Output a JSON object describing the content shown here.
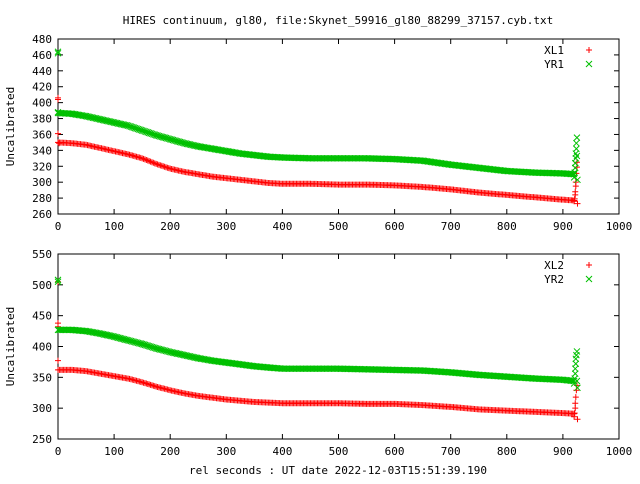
{
  "title": "HIRES continuum, gl80, file:Skynet_59916_gl80_88299_37157.cyb.txt",
  "xlabel": "rel seconds : UT date 2022-12-03T15:51:39.190",
  "colors": {
    "red": "#ff0000",
    "green": "#00c000",
    "axis": "#000000"
  },
  "chart_data": [
    {
      "type": "scatter",
      "ylabel": "Uncalibrated",
      "xlim": [
        0,
        1000
      ],
      "ylim": [
        260,
        480
      ],
      "x_ticks": [
        0,
        100,
        200,
        300,
        400,
        500,
        600,
        700,
        800,
        900,
        1000
      ],
      "y_ticks": [
        260,
        280,
        300,
        320,
        340,
        360,
        380,
        400,
        420,
        440,
        460,
        480
      ],
      "series": [
        {
          "name": "XL1",
          "color": "#ff0000",
          "marker": "+",
          "points": [
            [
              0,
              350
            ],
            [
              25,
              349
            ],
            [
              50,
              347
            ],
            [
              75,
              343
            ],
            [
              100,
              339
            ],
            [
              125,
              335
            ],
            [
              150,
              330
            ],
            [
              175,
              323
            ],
            [
              200,
              317
            ],
            [
              225,
              313
            ],
            [
              250,
              310
            ],
            [
              275,
              307
            ],
            [
              300,
              305
            ],
            [
              325,
              303
            ],
            [
              350,
              301
            ],
            [
              375,
              299
            ],
            [
              400,
              298
            ],
            [
              450,
              298
            ],
            [
              500,
              297
            ],
            [
              550,
              297
            ],
            [
              600,
              296
            ],
            [
              650,
              294
            ],
            [
              700,
              291
            ],
            [
              750,
              287
            ],
            [
              800,
              284
            ],
            [
              850,
              281
            ],
            [
              900,
              278
            ],
            [
              920,
              277
            ]
          ],
          "outliers": [
            [
              0,
              404
            ],
            [
              0,
              406
            ],
            [
              0,
              361
            ],
            [
              2,
              349
            ],
            [
              920,
              276
            ],
            [
              921,
              279
            ],
            [
              922,
              284
            ],
            [
              922,
              288
            ],
            [
              923,
              295
            ],
            [
              923,
              300
            ],
            [
              924,
              311
            ],
            [
              925,
              319
            ],
            [
              925,
              325
            ],
            [
              926,
              273
            ]
          ]
        },
        {
          "name": "YR1",
          "color": "#00c000",
          "marker": "x",
          "points": [
            [
              0,
              387
            ],
            [
              25,
              386
            ],
            [
              50,
              383
            ],
            [
              75,
              379
            ],
            [
              100,
              375
            ],
            [
              125,
              371
            ],
            [
              150,
              365
            ],
            [
              175,
              359
            ],
            [
              200,
              354
            ],
            [
              225,
              349
            ],
            [
              250,
              345
            ],
            [
              275,
              342
            ],
            [
              300,
              339
            ],
            [
              325,
              336
            ],
            [
              350,
              334
            ],
            [
              375,
              332
            ],
            [
              400,
              331
            ],
            [
              450,
              330
            ],
            [
              500,
              330
            ],
            [
              550,
              330
            ],
            [
              600,
              329
            ],
            [
              650,
              327
            ],
            [
              700,
              322
            ],
            [
              750,
              318
            ],
            [
              800,
              314
            ],
            [
              850,
              312
            ],
            [
              900,
              311
            ],
            [
              920,
              310
            ]
          ],
          "outliers": [
            [
              0,
              464
            ],
            [
              0,
              462
            ],
            [
              0,
              388
            ],
            [
              920,
              306
            ],
            [
              921,
              312
            ],
            [
              922,
              318
            ],
            [
              922,
              324
            ],
            [
              923,
              330
            ],
            [
              923,
              336
            ],
            [
              924,
              342
            ],
            [
              924,
              349
            ],
            [
              925,
              356
            ],
            [
              925,
              333
            ],
            [
              926,
              303
            ]
          ]
        }
      ]
    },
    {
      "type": "scatter",
      "ylabel": "Uncalibrated",
      "xlim": [
        0,
        1000
      ],
      "ylim": [
        250,
        550
      ],
      "x_ticks": [
        0,
        100,
        200,
        300,
        400,
        500,
        600,
        700,
        800,
        900,
        1000
      ],
      "y_ticks": [
        250,
        300,
        350,
        400,
        450,
        500,
        550
      ],
      "series": [
        {
          "name": "XL2",
          "color": "#ff0000",
          "marker": "+",
          "points": [
            [
              0,
              362
            ],
            [
              25,
              362
            ],
            [
              50,
              360
            ],
            [
              75,
              356
            ],
            [
              100,
              352
            ],
            [
              125,
              348
            ],
            [
              150,
              342
            ],
            [
              175,
              335
            ],
            [
              200,
              329
            ],
            [
              225,
              324
            ],
            [
              250,
              320
            ],
            [
              275,
              317
            ],
            [
              300,
              314
            ],
            [
              325,
              312
            ],
            [
              350,
              310
            ],
            [
              375,
              309
            ],
            [
              400,
              308
            ],
            [
              450,
              308
            ],
            [
              500,
              308
            ],
            [
              550,
              307
            ],
            [
              600,
              307
            ],
            [
              650,
              305
            ],
            [
              700,
              302
            ],
            [
              750,
              298
            ],
            [
              800,
              296
            ],
            [
              850,
              294
            ],
            [
              900,
              292
            ],
            [
              920,
              291
            ]
          ],
          "outliers": [
            [
              0,
              438
            ],
            [
              0,
              432
            ],
            [
              0,
              377
            ],
            [
              0,
              505
            ],
            [
              920,
              286
            ],
            [
              921,
              292
            ],
            [
              922,
              300
            ],
            [
              922,
              308
            ],
            [
              923,
              318
            ],
            [
              924,
              329
            ],
            [
              925,
              337
            ],
            [
              926,
              282
            ]
          ]
        },
        {
          "name": "YR2",
          "color": "#00c000",
          "marker": "x",
          "points": [
            [
              0,
              427
            ],
            [
              25,
              427
            ],
            [
              50,
              425
            ],
            [
              75,
              421
            ],
            [
              100,
              416
            ],
            [
              125,
              410
            ],
            [
              150,
              404
            ],
            [
              175,
              397
            ],
            [
              200,
              391
            ],
            [
              225,
              386
            ],
            [
              250,
              381
            ],
            [
              275,
              377
            ],
            [
              300,
              374
            ],
            [
              325,
              371
            ],
            [
              350,
              368
            ],
            [
              375,
              366
            ],
            [
              400,
              364
            ],
            [
              450,
              364
            ],
            [
              500,
              364
            ],
            [
              550,
              363
            ],
            [
              600,
              362
            ],
            [
              650,
              361
            ],
            [
              700,
              358
            ],
            [
              750,
              354
            ],
            [
              800,
              351
            ],
            [
              850,
              348
            ],
            [
              900,
              346
            ],
            [
              920,
              344
            ]
          ],
          "outliers": [
            [
              0,
              508
            ],
            [
              0,
              505
            ],
            [
              920,
              340
            ],
            [
              921,
              348
            ],
            [
              922,
              356
            ],
            [
              922,
              364
            ],
            [
              923,
              372
            ],
            [
              923,
              380
            ],
            [
              924,
              386
            ],
            [
              925,
              392
            ],
            [
              925,
              344
            ],
            [
              926,
              333
            ]
          ]
        }
      ]
    }
  ]
}
